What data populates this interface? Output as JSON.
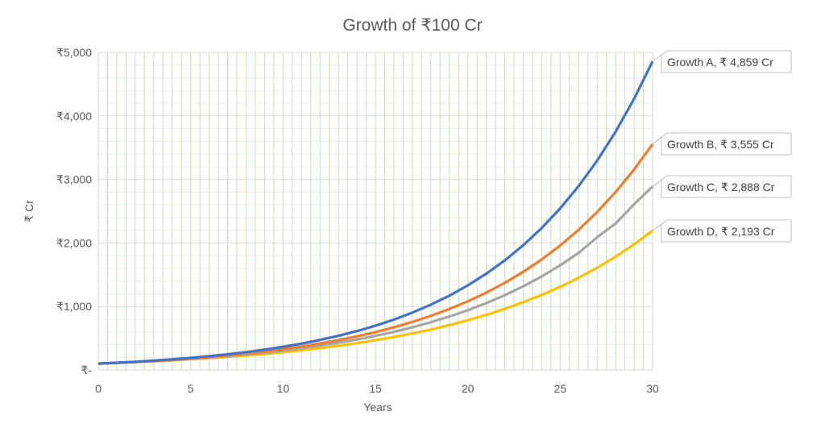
{
  "chart_data": {
    "type": "line",
    "title": "Growth of ₹100 Cr",
    "xlabel": "Years",
    "ylabel": "₹ Cr",
    "xlim": [
      0,
      30
    ],
    "ylim": [
      0,
      5000
    ],
    "x_ticks": [
      "0",
      "5",
      "10",
      "15",
      "20",
      "25",
      "30"
    ],
    "y_ticks": [
      "₹-",
      "₹1,000",
      "₹2,000",
      "₹3,000",
      "₹4,000",
      "₹5,000"
    ],
    "grid": true,
    "legend": "none",
    "x": [
      0,
      1,
      2,
      3,
      4,
      5,
      6,
      7,
      8,
      9,
      10,
      11,
      12,
      13,
      14,
      15,
      16,
      17,
      18,
      19,
      20,
      21,
      22,
      23,
      24,
      25,
      26,
      27,
      28,
      29,
      30
    ],
    "series": [
      {
        "name": "Growth A",
        "color": "#4472C4",
        "end_label": "Growth A, ₹ 4,859 Cr",
        "values": [
          100,
          113.8,
          129.6,
          147.5,
          167.8,
          191,
          217.4,
          247.5,
          281.7,
          320.6,
          364.9,
          415.4,
          472.8,
          538.1,
          612.5,
          697.1,
          793.5,
          903.2,
          1028,
          1170,
          1332,
          1516,
          1725,
          1964,
          2235,
          2544,
          2896,
          3296,
          3752,
          4270,
          4859
        ]
      },
      {
        "name": "Growth B",
        "color": "#ED7D31",
        "end_label": "Growth B, ₹ 3,555 Cr",
        "values": [
          100,
          112.6,
          126.9,
          142.9,
          161,
          181.3,
          204.2,
          230.1,
          259.2,
          291.9,
          328.8,
          370.4,
          417.2,
          469.9,
          529.3,
          596.2,
          671.6,
          756.5,
          852.1,
          959.8,
          1081,
          1218,
          1372,
          1545,
          1740,
          1960,
          2208,
          2487,
          2802,
          3156,
          3555
        ]
      },
      {
        "name": "Growth C",
        "color": "#A5A5A5",
        "end_label": "Growth C, ₹ 2,888 Cr",
        "values": [
          100,
          111.9,
          125.1,
          140,
          156.6,
          175.2,
          195.9,
          219.2,
          245.2,
          274.3,
          306.8,
          343.2,
          383.9,
          429.4,
          480.4,
          537.3,
          601.1,
          672.4,
          752.1,
          841.3,
          941.1,
          1053,
          1178,
          1317,
          1473,
          1648,
          1844,
          2090,
          2307,
          2610,
          2888
        ]
      },
      {
        "name": "Growth D",
        "color": "#FFC000",
        "end_label": "Growth D, ₹ 2,193 Cr",
        "values": [
          100,
          110.8,
          122.9,
          136.2,
          150.9,
          167.3,
          185.4,
          205.5,
          227.8,
          252.5,
          279.9,
          310.2,
          343.8,
          381.1,
          422.4,
          468.2,
          519,
          575.2,
          637.6,
          706.7,
          783.3,
          868.2,
          962.3,
          1067,
          1182,
          1310,
          1452,
          1610,
          1784,
          1978,
          2193
        ]
      }
    ]
  }
}
